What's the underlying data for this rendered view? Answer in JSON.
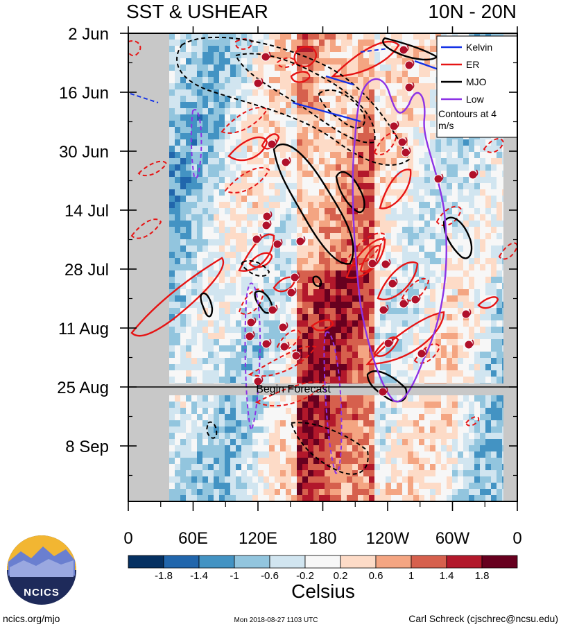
{
  "chart_data": {
    "type": "hovmoller",
    "title_left": "SST & USHEAR",
    "title_right": "10N - 20N",
    "x_ticks": [
      "0",
      "60E",
      "120E",
      "180",
      "120W",
      "60W",
      "0"
    ],
    "x_range_deg": [
      0,
      360
    ],
    "y_ticks": [
      "2 Jun",
      "16 Jun",
      "30 Jun",
      "14 Jul",
      "28 Jul",
      "11 Aug",
      "25 Aug",
      "8 Sep"
    ],
    "y_range_days": [
      0,
      110
    ],
    "forecast_label": "Begin Forecast",
    "forecast_day": 84,
    "legend": {
      "items": [
        {
          "name": "Kelvin",
          "color": "#1432e6"
        },
        {
          "name": "ER",
          "color": "#e61414"
        },
        {
          "name": "MJO",
          "color": "#000000"
        },
        {
          "name": "Low",
          "color": "#8c32e6"
        }
      ],
      "note": "Contours at 4 m/s"
    },
    "colorbar": {
      "label": "Celsius",
      "tick_labels": [
        "-1.8",
        "-1.4",
        "-1",
        "-0.6",
        "-0.2",
        "0.2",
        "0.6",
        "1",
        "1.4",
        "1.8"
      ],
      "colors": [
        "#053061",
        "#2166ac",
        "#4393c3",
        "#92c5de",
        "#d1e5f0",
        "#f7f7f7",
        "#fddbc7",
        "#f4a582",
        "#d6604d",
        "#b2182b",
        "#67001f"
      ]
    }
  },
  "logo": {
    "text": "NCICS"
  },
  "footer": {
    "left": "ncics.org/mjo",
    "center": "Mon 2018-08-27 1103 UTC",
    "right": "Carl Schreck (cjschrec@ncsu.edu)"
  }
}
